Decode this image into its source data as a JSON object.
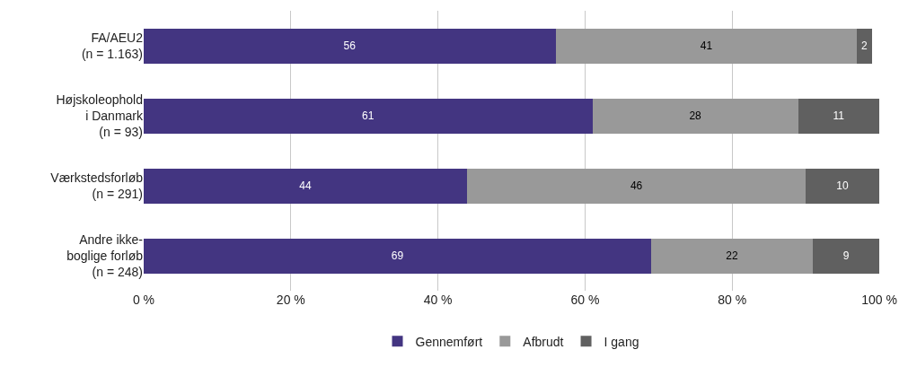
{
  "chart_data": {
    "type": "bar",
    "orientation": "horizontal",
    "stacked": true,
    "categories": [
      "FA/AEU2\n(n = 1.163)",
      "Højskoleophold\ni Danmark\n(n = 93)",
      "Værkstedsforløb\n(n = 291)",
      "Andre ikke-\nboglige forløb\n(n = 248)"
    ],
    "series": [
      {
        "name": "Gennemført",
        "color": "#433581",
        "values": [
          56,
          61,
          44,
          69
        ]
      },
      {
        "name": "Afbrudt",
        "color": "#999999",
        "values": [
          41,
          28,
          46,
          22
        ]
      },
      {
        "name": "I gang",
        "color": "#606060",
        "values": [
          2,
          11,
          10,
          9
        ]
      }
    ],
    "xlim": [
      0,
      100
    ],
    "xticks": [
      {
        "value": 0,
        "label": "0 %"
      },
      {
        "value": 20,
        "label": "20 %"
      },
      {
        "value": 40,
        "label": "40 %"
      },
      {
        "value": 60,
        "label": "60 %"
      },
      {
        "value": 80,
        "label": "80 %"
      },
      {
        "value": 100,
        "label": "100 %"
      }
    ],
    "grid": "x",
    "legend": "bottom",
    "data_labels": true
  }
}
